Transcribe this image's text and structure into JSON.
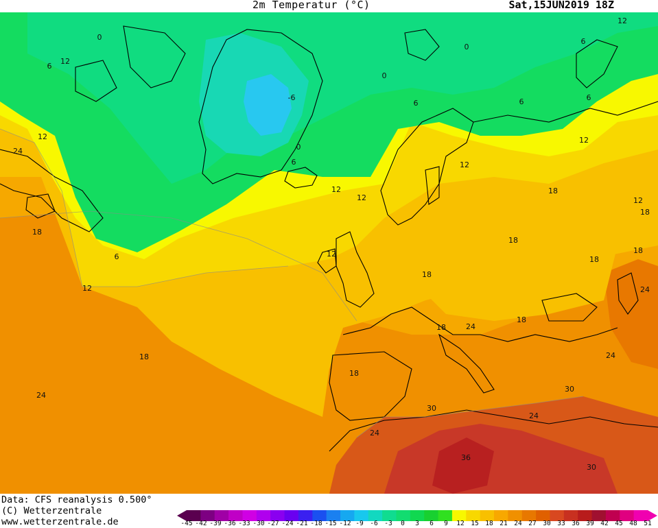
{
  "header": {
    "title": "2m Temperatur (°C)",
    "datetime": "Sat,15JUN2019 18Z"
  },
  "footer": {
    "data_source": "Data: CFS reanalysis 0.500°",
    "copyright": "(C) Wetterzentrale",
    "url": "www.wetterzentrale.de"
  },
  "legend": {
    "ticks": [
      "-45",
      "-42",
      "-39",
      "-36",
      "-33",
      "-30",
      "-27",
      "-24",
      "-21",
      "-18",
      "-15",
      "-12",
      "-9",
      "-6",
      "-3",
      "0",
      "3",
      "6",
      "9",
      "12",
      "15",
      "18",
      "21",
      "24",
      "27",
      "30",
      "33",
      "36",
      "39",
      "42",
      "45",
      "48",
      "51"
    ],
    "colors": [
      "#5a004f",
      "#7d0082",
      "#a000a6",
      "#c000c6",
      "#d000e4",
      "#b000ee",
      "#8a00f0",
      "#6a00f0",
      "#3a20f0",
      "#1a50f0",
      "#1a80f0",
      "#16a8f0",
      "#18c8ee",
      "#12d8c0",
      "#10dc90",
      "#12dc70",
      "#10d850",
      "#18d030",
      "#30e020",
      "#f8f800",
      "#f8d800",
      "#f8c000",
      "#f8a800",
      "#f09000",
      "#e87800",
      "#e06000",
      "#d84820",
      "#c83020",
      "#b81c1c",
      "#a01030",
      "#c00050",
      "#e00080",
      "#f000b0"
    ]
  },
  "map": {
    "colors": {
      "ice": "#28c8f0",
      "cold": "#18d8b4",
      "cool": "#10dc80",
      "mild": "#14dc60",
      "bright": "#50e030",
      "temp12": "#f8f800",
      "temp15": "#f8d800",
      "temp18": "#f8c000",
      "temp21": "#f6a800",
      "temp24": "#f09000",
      "temp27": "#e87800",
      "temp30": "#d85818",
      "temp33": "#c83828",
      "temp36": "#b82020",
      "coast": "#000000",
      "contour": "#8a8a8a"
    },
    "contour_labels": [
      {
        "text": "0",
        "name": "label-0-greenland-west"
      },
      {
        "text": "6",
        "name": "label-6-labrador"
      },
      {
        "text": "12",
        "name": "label-12-labrador"
      },
      {
        "text": "-6",
        "name": "label-minus6-greenland"
      },
      {
        "text": "0",
        "name": "label-0-greenland-south"
      },
      {
        "text": "6",
        "name": "label-6-iceland"
      },
      {
        "text": "12",
        "name": "label-12-newfoundland"
      },
      {
        "text": "24",
        "name": "label-24-canada"
      },
      {
        "text": "18",
        "name": "label-18-atlantic-west"
      },
      {
        "text": "12",
        "name": "label-12-atlantic"
      },
      {
        "text": "6",
        "name": "label-6-atlantic"
      },
      {
        "text": "12",
        "name": "label-12-atlantic-south"
      },
      {
        "text": "18",
        "name": "label-18-atlantic-mid"
      },
      {
        "text": "24",
        "name": "label-24-atlantic-southwest"
      },
      {
        "text": "12",
        "name": "label-12-norway"
      },
      {
        "text": "12",
        "name": "label-12-ireland"
      },
      {
        "text": "6",
        "name": "label-6-norwegian-sea"
      },
      {
        "text": "0",
        "name": "label-0-svalbard"
      },
      {
        "text": "0",
        "name": "label-0-svalbard-west"
      },
      {
        "text": "6",
        "name": "label-6-barents"
      },
      {
        "text": "6",
        "name": "label-6-kara"
      },
      {
        "text": "6",
        "name": "label-6-kara-north"
      },
      {
        "text": "12",
        "name": "label-12-siberia"
      },
      {
        "text": "12",
        "name": "label-12-arctic-east"
      },
      {
        "text": "12",
        "name": "label-12-finland"
      },
      {
        "text": "18",
        "name": "label-18-russia"
      },
      {
        "text": "18",
        "name": "label-18-ukraine"
      },
      {
        "text": "18",
        "name": "label-18-central-europe"
      },
      {
        "text": "18",
        "name": "label-18-russia-east"
      },
      {
        "text": "18",
        "name": "label-18-caspian"
      },
      {
        "text": "12",
        "name": "label-12-urals"
      },
      {
        "text": "18",
        "name": "label-18-urals"
      },
      {
        "text": "24",
        "name": "label-24-kazakhstan"
      },
      {
        "text": "18",
        "name": "label-18-alps"
      },
      {
        "text": "24",
        "name": "label-24-balkans"
      },
      {
        "text": "18",
        "name": "label-18-turkey"
      },
      {
        "text": "24",
        "name": "label-24-turkey-east"
      },
      {
        "text": "18",
        "name": "label-18-iberia"
      },
      {
        "text": "30",
        "name": "label-30-maghreb"
      },
      {
        "text": "24",
        "name": "label-24-morocco"
      },
      {
        "text": "24",
        "name": "label-24-libya"
      },
      {
        "text": "30",
        "name": "label-30-egypt"
      },
      {
        "text": "36",
        "name": "label-36-sahara"
      },
      {
        "text": "30",
        "name": "label-30-sahara-east"
      }
    ]
  }
}
